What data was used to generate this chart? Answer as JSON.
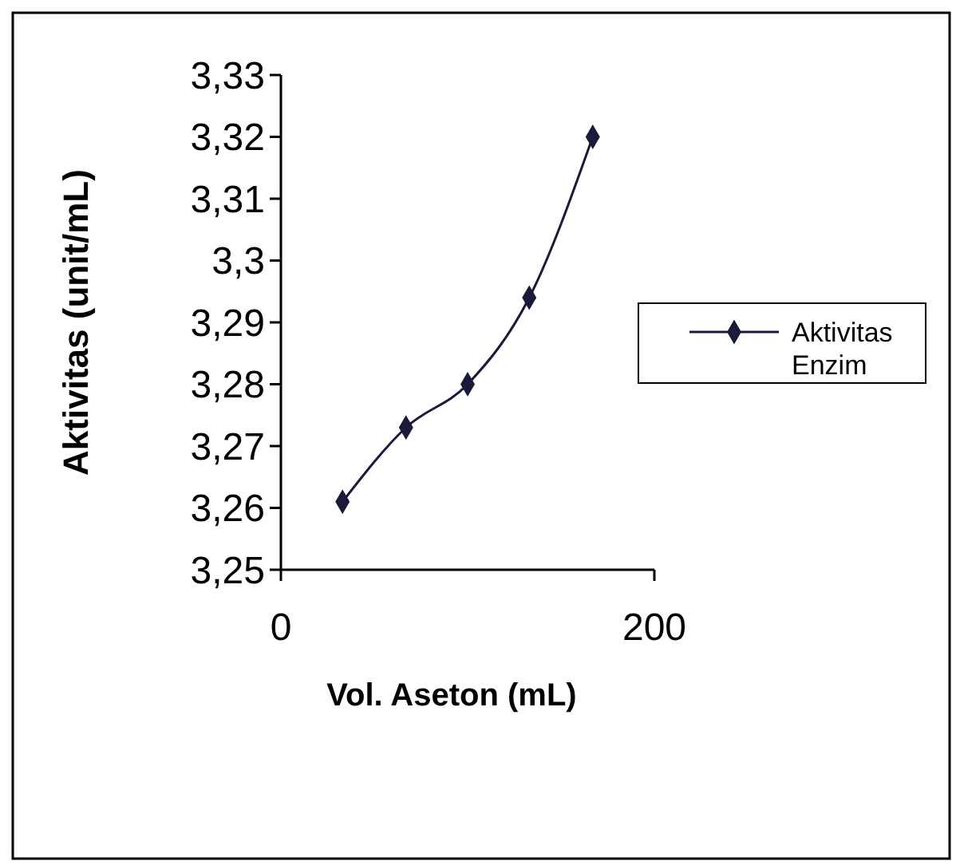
{
  "chart_data": {
    "type": "line",
    "xlabel": "Vol. Aseton (mL)",
    "ylabel": "Aktivitas (unit/mL)",
    "xlim": [
      0,
      200
    ],
    "xticks": [
      0,
      200
    ],
    "ylim": [
      3.25,
      3.33
    ],
    "yticks": [
      {
        "value": 3.25,
        "label": "3,25"
      },
      {
        "value": 3.26,
        "label": "3,26"
      },
      {
        "value": 3.27,
        "label": "3,27"
      },
      {
        "value": 3.28,
        "label": "3,28"
      },
      {
        "value": 3.29,
        "label": "3,29"
      },
      {
        "value": 3.3,
        "label": "3,3"
      },
      {
        "value": 3.31,
        "label": "3,31"
      },
      {
        "value": 3.32,
        "label": "3,32"
      },
      {
        "value": 3.33,
        "label": "3,33"
      }
    ],
    "x": [
      33,
      67,
      100,
      133,
      167
    ],
    "series": [
      {
        "name": "Aktivitas Enzim",
        "color": "#1a1a3a",
        "values": [
          3.261,
          3.273,
          3.28,
          3.294,
          3.32
        ]
      }
    ],
    "marker": "diamond",
    "line_style": "solid",
    "grid": false,
    "legend": "right"
  }
}
